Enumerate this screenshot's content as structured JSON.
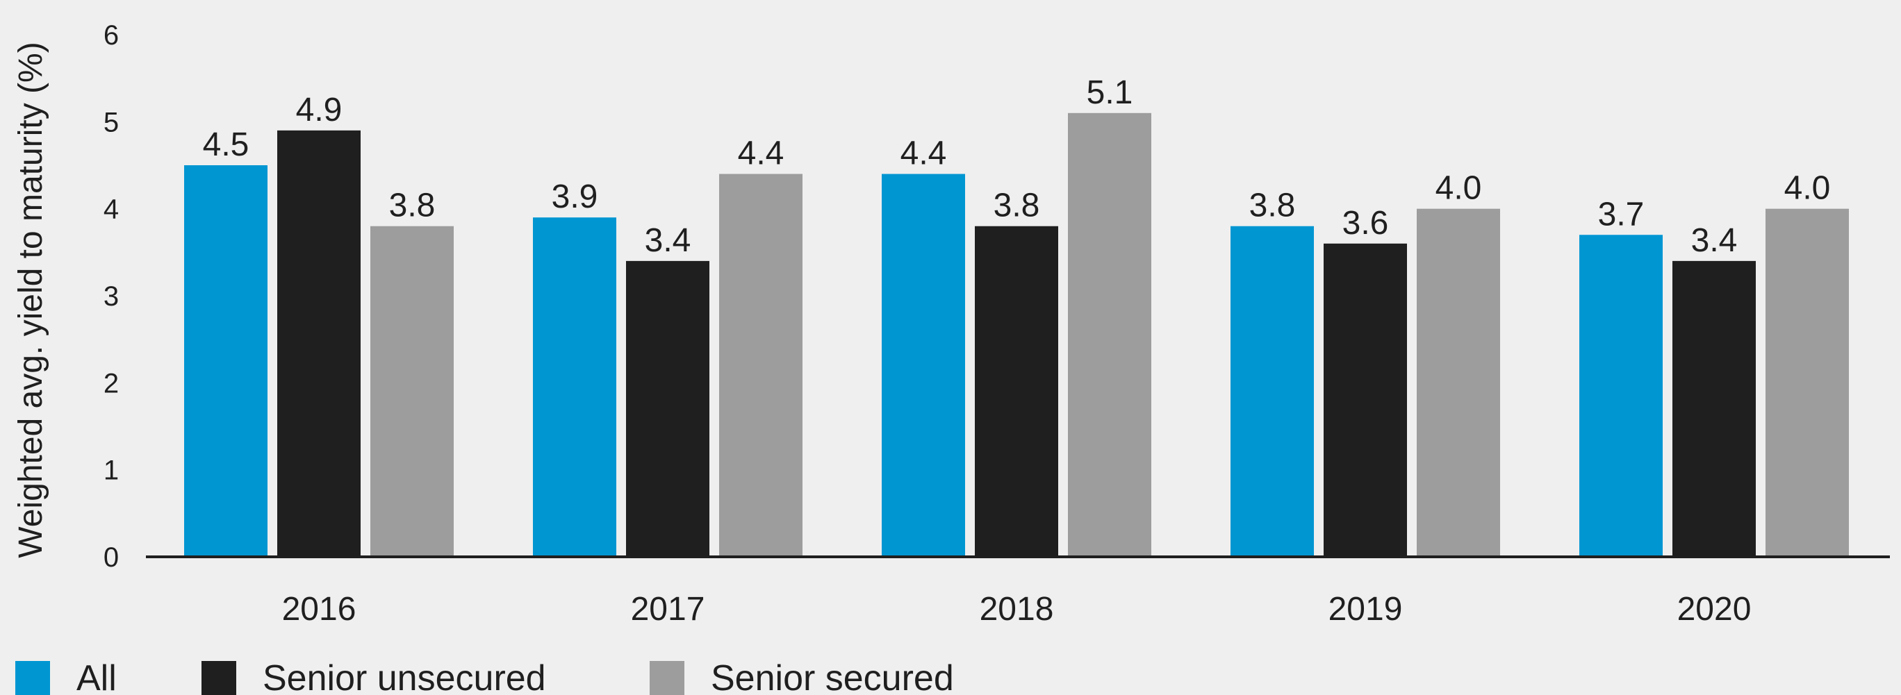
{
  "chart_data": {
    "type": "bar",
    "title": "",
    "xlabel": "",
    "ylabel": "Weighted avg. yield to maturity (%)",
    "ylim": [
      0,
      6
    ],
    "yticks": [
      "0",
      "1",
      "2",
      "3",
      "4",
      "5",
      "6"
    ],
    "grid": false,
    "legend_position": "bottom-left",
    "categories": [
      "2016",
      "2017",
      "2018",
      "2019",
      "2020"
    ],
    "series": [
      {
        "name": "All",
        "color": "#0096d2",
        "values": [
          4.5,
          3.9,
          4.4,
          3.8,
          3.7
        ],
        "labels": [
          "4.5",
          "3.9",
          "4.4",
          "3.8",
          "3.7"
        ]
      },
      {
        "name": "Senior unsecured",
        "color": "#1f1f1f",
        "values": [
          4.9,
          3.4,
          3.8,
          3.6,
          3.4
        ],
        "labels": [
          "4.9",
          "3.4",
          "3.8",
          "3.6",
          "3.4"
        ]
      },
      {
        "name": "Senior secured",
        "color": "#9d9d9d",
        "values": [
          3.8,
          4.4,
          5.1,
          4.0,
          4.0
        ],
        "labels": [
          "3.8",
          "4.4",
          "5.1",
          "4.0",
          "4.0"
        ]
      }
    ]
  }
}
